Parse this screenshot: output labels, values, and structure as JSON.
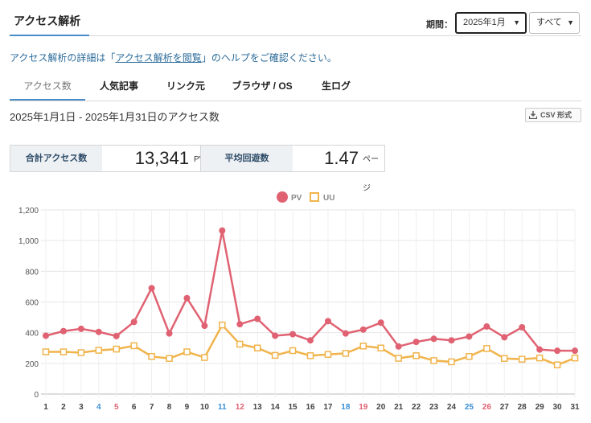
{
  "header": {
    "title": "アクセス解析",
    "period_label": "期間：",
    "month_select": "2025年1月",
    "scope_select": "すべて"
  },
  "help": {
    "prefix": "アクセス解析の詳細は「",
    "link": "アクセス解析を閲覧",
    "suffix": "」のヘルプをご確認ください。"
  },
  "tabs": [
    "アクセス数",
    "人気記事",
    "リンク元",
    "ブラウザ / OS",
    "生ログ"
  ],
  "range_title": "2025年1月1日 - 2025年1月31日のアクセス数",
  "csv_label": "CSV 形式",
  "stats": {
    "total_label": "合計アクセス数",
    "total_value": "13,341",
    "total_unit": "PV",
    "avg_label": "平均回遊数",
    "avg_value": "1.47",
    "avg_unit": "ページ"
  },
  "colors": {
    "pv": "#e06272",
    "uu": "#f0b44c",
    "saturday": "#3b8fd4",
    "sunday": "#e06272",
    "accent": "#4a8cc7"
  },
  "chart_data": {
    "type": "line",
    "x": [
      1,
      2,
      3,
      4,
      5,
      6,
      7,
      8,
      9,
      10,
      11,
      12,
      13,
      14,
      15,
      16,
      17,
      18,
      19,
      20,
      21,
      22,
      23,
      24,
      25,
      26,
      27,
      28,
      29,
      30,
      31
    ],
    "x_tick_labels": [
      "1",
      "2",
      "3",
      "4",
      "5",
      "6",
      "7",
      "8",
      "9",
      "10",
      "11",
      "12",
      "13",
      "14",
      "15",
      "16",
      "17",
      "18",
      "19",
      "20",
      "21",
      "22",
      "23",
      "24",
      "25",
      "26",
      "27",
      "28",
      "29",
      "30",
      "31"
    ],
    "saturdays": [
      4,
      11,
      18,
      25
    ],
    "sundays": [
      5,
      12,
      19,
      26
    ],
    "y_ticks": [
      "0",
      "200",
      "400",
      "600",
      "800",
      "1,000",
      "1,200"
    ],
    "ylim": [
      0,
      1200
    ],
    "grid": true,
    "legend_position": "top-center",
    "series": [
      {
        "name": "PV",
        "marker": "circle",
        "values": [
          380,
          410,
          425,
          405,
          378,
          470,
          690,
          395,
          625,
          445,
          1065,
          455,
          490,
          380,
          390,
          350,
          475,
          395,
          420,
          465,
          310,
          340,
          360,
          350,
          375,
          440,
          370,
          435,
          290,
          282,
          282
        ]
      },
      {
        "name": "UU",
        "marker": "square",
        "values": [
          275,
          275,
          270,
          285,
          293,
          315,
          245,
          232,
          275,
          238,
          450,
          325,
          300,
          252,
          283,
          250,
          258,
          265,
          313,
          300,
          233,
          250,
          218,
          210,
          245,
          297,
          232,
          227,
          235,
          190,
          235
        ]
      }
    ]
  }
}
